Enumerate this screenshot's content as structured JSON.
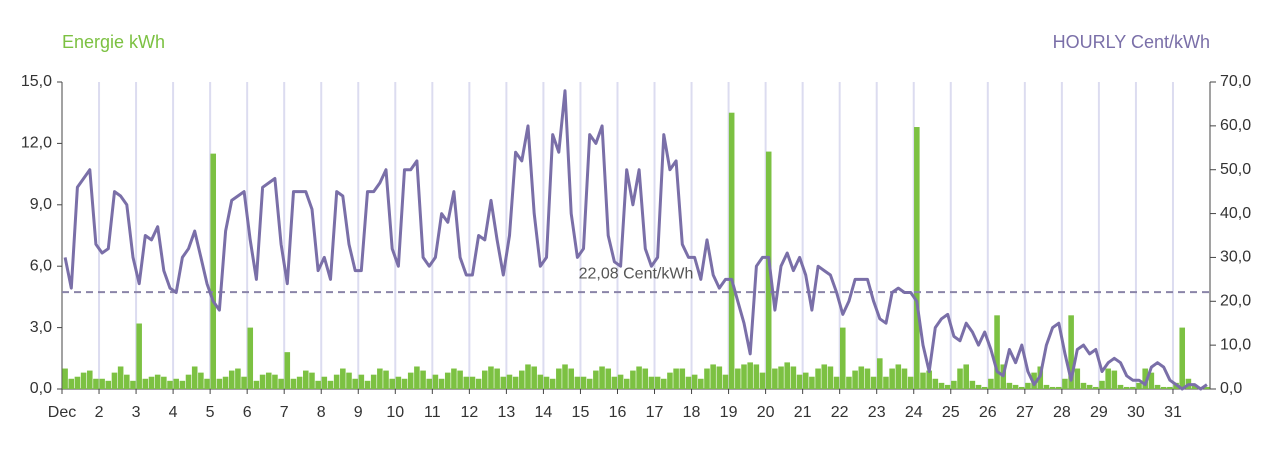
{
  "chart_data": {
    "type": "bar-line",
    "y_title": "Energie kWh",
    "y2_title": "HOURLY Cent/kWh",
    "categories": [
      "Dec",
      "2",
      "3",
      "4",
      "5",
      "6",
      "7",
      "8",
      "9",
      "10",
      "11",
      "12",
      "13",
      "14",
      "15",
      "16",
      "17",
      "18",
      "19",
      "20",
      "21",
      "22",
      "23",
      "24",
      "25",
      "26",
      "27",
      "28",
      "29",
      "30",
      "31"
    ],
    "ylim": [
      0,
      15
    ],
    "yticks": [
      {
        "value": 0,
        "label": "0,0"
      },
      {
        "value": 3,
        "label": "3,0"
      },
      {
        "value": 6,
        "label": "6,0"
      },
      {
        "value": 9,
        "label": "9,0"
      },
      {
        "value": 12,
        "label": "12,0"
      },
      {
        "value": 15,
        "label": "15,0"
      }
    ],
    "y2lim": [
      0,
      70
    ],
    "y2ticks": [
      {
        "value": 0,
        "label": "0,0"
      },
      {
        "value": 10,
        "label": "10,0"
      },
      {
        "value": 20,
        "label": "20,0"
      },
      {
        "value": 30,
        "label": "30,0"
      },
      {
        "value": 40,
        "label": "40,0"
      },
      {
        "value": 50,
        "label": "50,0"
      },
      {
        "value": 60,
        "label": "60,0"
      },
      {
        "value": 70,
        "label": "70,0"
      }
    ],
    "grid": true,
    "reference_line": {
      "value": 22.08,
      "label": "22,08 Cent/kWh",
      "axis": "y2",
      "color": "#8a84a8"
    },
    "series": [
      {
        "name": "Energie kWh",
        "type": "bar",
        "color": "#7cc142",
        "values": [
          [
            1.0,
            0.5,
            0.6,
            0.8,
            0.9,
            0.5
          ],
          [
            0.5,
            0.4,
            0.8,
            1.1,
            0.7,
            0.4
          ],
          [
            3.2,
            0.5,
            0.6,
            0.7,
            0.6,
            0.4
          ],
          [
            0.5,
            0.4,
            0.7,
            1.1,
            0.8,
            0.5
          ],
          [
            11.5,
            0.5,
            0.6,
            0.9,
            1.0,
            0.6
          ],
          [
            3.0,
            0.4,
            0.7,
            0.8,
            0.7,
            0.5
          ],
          [
            1.8,
            0.5,
            0.6,
            0.9,
            0.8,
            0.4
          ],
          [
            0.6,
            0.4,
            0.7,
            1.0,
            0.8,
            0.5
          ],
          [
            0.7,
            0.4,
            0.7,
            1.0,
            0.9,
            0.5
          ],
          [
            0.6,
            0.5,
            0.8,
            1.1,
            0.9,
            0.5
          ],
          [
            0.7,
            0.5,
            0.8,
            1.0,
            0.9,
            0.6
          ],
          [
            0.6,
            0.5,
            0.9,
            1.1,
            1.0,
            0.6
          ],
          [
            0.7,
            0.6,
            0.9,
            1.2,
            1.1,
            0.7
          ],
          [
            0.6,
            0.5,
            1.0,
            1.2,
            1.0,
            0.6
          ],
          [
            0.6,
            0.5,
            0.9,
            1.1,
            1.0,
            0.6
          ],
          [
            0.7,
            0.5,
            0.9,
            1.1,
            1.0,
            0.6
          ],
          [
            0.6,
            0.5,
            0.8,
            1.0,
            1.0,
            0.6
          ],
          [
            0.7,
            0.5,
            1.0,
            1.2,
            1.1,
            0.7
          ],
          [
            13.5,
            1.0,
            1.2,
            1.3,
            1.2,
            0.8
          ],
          [
            11.6,
            1.0,
            1.1,
            1.3,
            1.1,
            0.7
          ],
          [
            0.8,
            0.6,
            1.0,
            1.2,
            1.1,
            0.6
          ],
          [
            3.0,
            0.6,
            0.9,
            1.1,
            1.0,
            0.6
          ],
          [
            1.5,
            0.6,
            1.0,
            1.2,
            1.0,
            0.6
          ],
          [
            12.8,
            0.8,
            0.9,
            0.5,
            0.3,
            0.2
          ],
          [
            0.4,
            1.0,
            1.2,
            0.4,
            0.2,
            0.1
          ],
          [
            0.5,
            3.6,
            1.2,
            0.3,
            0.2,
            0.1
          ],
          [
            0.3,
            0.8,
            1.1,
            0.2,
            0.1,
            0.1
          ],
          [
            0.5,
            3.6,
            1.0,
            0.3,
            0.2,
            0.1
          ],
          [
            0.4,
            1.0,
            0.9,
            0.2,
            0.1,
            0.1
          ],
          [
            0.3,
            1.0,
            0.8,
            0.2,
            0.1,
            0.1
          ],
          [
            0.3,
            3.0,
            0.5,
            0.2,
            0.1,
            0.1
          ]
        ]
      },
      {
        "name": "HOURLY Cent/kWh",
        "type": "line",
        "axis": "y2",
        "color": "#7a6fa8",
        "values": [
          [
            30,
            23,
            46,
            48,
            50,
            33
          ],
          [
            31,
            32,
            45,
            44,
            42,
            30
          ],
          [
            24,
            35,
            34,
            37,
            27,
            23
          ],
          [
            22,
            30,
            32,
            36,
            30,
            24
          ],
          [
            20,
            18,
            36,
            43,
            44,
            45
          ],
          [
            34,
            25,
            46,
            47,
            48,
            33
          ],
          [
            24,
            45,
            45,
            45,
            41,
            27
          ],
          [
            30,
            25,
            45,
            44,
            33,
            27
          ],
          [
            27,
            45,
            45,
            47,
            50,
            32
          ],
          [
            28,
            50,
            50,
            52,
            30,
            28
          ],
          [
            30,
            40,
            38,
            45,
            30,
            26
          ],
          [
            26,
            35,
            34,
            43,
            34,
            26
          ],
          [
            35,
            54,
            52,
            60,
            40,
            28
          ],
          [
            30,
            58,
            54,
            68,
            40,
            30
          ],
          [
            32,
            58,
            56,
            60,
            35,
            29
          ],
          [
            28,
            50,
            42,
            50,
            32,
            28
          ],
          [
            30,
            58,
            50,
            52,
            33,
            30
          ],
          [
            30,
            25,
            34,
            26,
            23,
            25
          ],
          [
            25,
            20,
            15,
            8,
            28,
            30
          ],
          [
            30,
            18,
            28,
            31,
            27,
            30
          ],
          [
            26,
            18,
            28,
            27,
            26,
            22
          ],
          [
            17,
            20,
            25,
            25,
            25,
            20
          ],
          [
            16,
            15,
            22,
            23,
            22,
            22
          ],
          [
            20,
            10,
            4,
            14,
            16,
            17
          ],
          [
            12,
            11,
            15,
            13,
            10,
            13
          ],
          [
            9,
            4,
            3,
            9,
            6,
            10
          ],
          [
            4,
            1,
            3,
            10,
            14,
            15
          ],
          [
            8,
            2,
            9,
            10,
            8,
            9
          ],
          [
            4,
            6,
            7,
            6,
            3,
            2
          ],
          [
            2,
            1,
            5,
            6,
            5,
            2
          ],
          [
            1,
            0,
            1,
            1,
            0,
            1
          ]
        ]
      }
    ]
  }
}
